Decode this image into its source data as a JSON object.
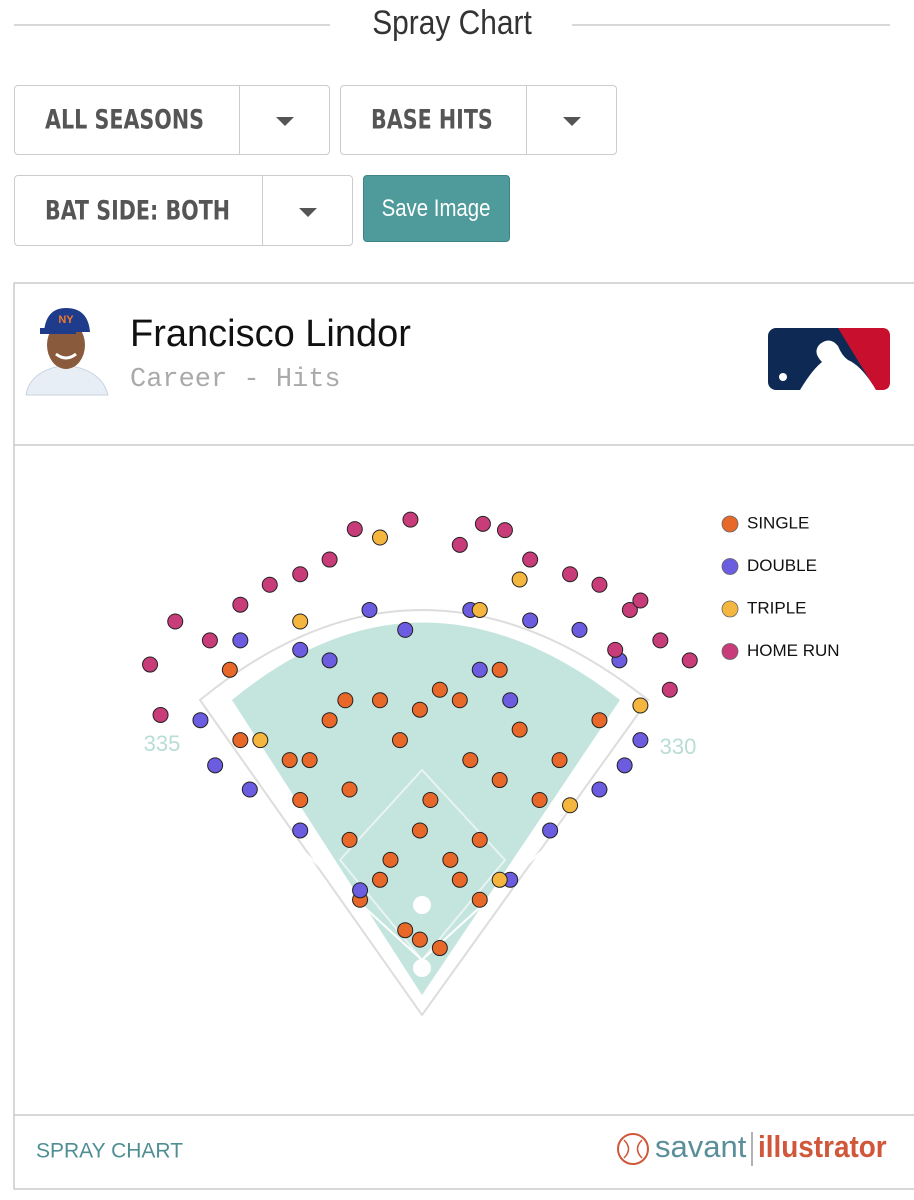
{
  "header": {
    "title": "Spray Chart"
  },
  "controls": {
    "season": "ALL SEASONS",
    "hit_type": "BASE HITS",
    "bat_side": "BAT SIDE: BOTH",
    "save": "Save Image"
  },
  "card": {
    "player": "Francisco Lindor",
    "subtitle": "Career - Hits",
    "footer_left": "SPRAY CHART",
    "brand_1": "savant",
    "brand_2": "illustrator"
  },
  "chart_data": {
    "type": "scatter",
    "fence_labels": [
      "335",
      "330"
    ],
    "series": [
      {
        "name": "SINGLE",
        "color": "#e8682a",
        "x": [
          -2,
          -16,
          17,
          -40,
          36,
          -69,
          55,
          -2,
          -116,
          112,
          -126,
          131,
          -88,
          93,
          -2,
          -40,
          36,
          17,
          -21,
          46,
          -69,
          74,
          -30,
          27,
          -107,
          169,
          -173,
          -59,
          55,
          8,
          -73,
          74,
          -183
        ],
        "y": [
          27,
          36,
          19,
          84,
          84,
          122,
          122,
          131,
          160,
          160,
          198,
          198,
          236,
          227,
          246,
          255,
          255,
          265,
          217,
          198,
          170,
          179,
          103,
          103,
          198,
          236,
          217,
          65,
          65,
          160,
          255,
          284,
          284
        ]
      },
      {
        "name": "DOUBLE",
        "color": "#6b5ce0",
        "x": [
          -211,
          -164,
          208,
          169,
          122,
          -116,
          -173,
          -116,
          -50,
          -16,
          46,
          103,
          150,
          188,
          55,
          84,
          -59,
          84,
          -88,
          193,
          -197
        ],
        "y": [
          236,
          170,
          217,
          170,
          131,
          131,
          312,
          303,
          341,
          322,
          341,
          331,
          322,
          293,
          284,
          255,
          74,
          84,
          293,
          193,
          193
        ]
      },
      {
        "name": "TRIPLE",
        "color": "#f4b63f",
        "x": [
          -40,
          -116,
          93,
          55,
          -154,
          141,
          74,
          208
        ],
        "y": [
          410,
          330,
          370,
          341,
          217,
          155,
          84,
          250
        ]
      },
      {
        "name": "HOME RUN",
        "color": "#c93c7a",
        "x": [
          -235,
          -202,
          -173,
          -145,
          -116,
          -88,
          -64,
          -11,
          36,
          79,
          103,
          141,
          169,
          198,
          227,
          255,
          236,
          -259,
          -249,
          58,
          208,
          184
        ],
        "y": [
          330,
          312,
          346,
          365,
          375,
          389,
          418,
          427,
          403,
          417,
          389,
          375,
          365,
          341,
          312,
          293,
          265,
          289,
          241,
          423,
          350,
          303
        ]
      }
    ]
  }
}
